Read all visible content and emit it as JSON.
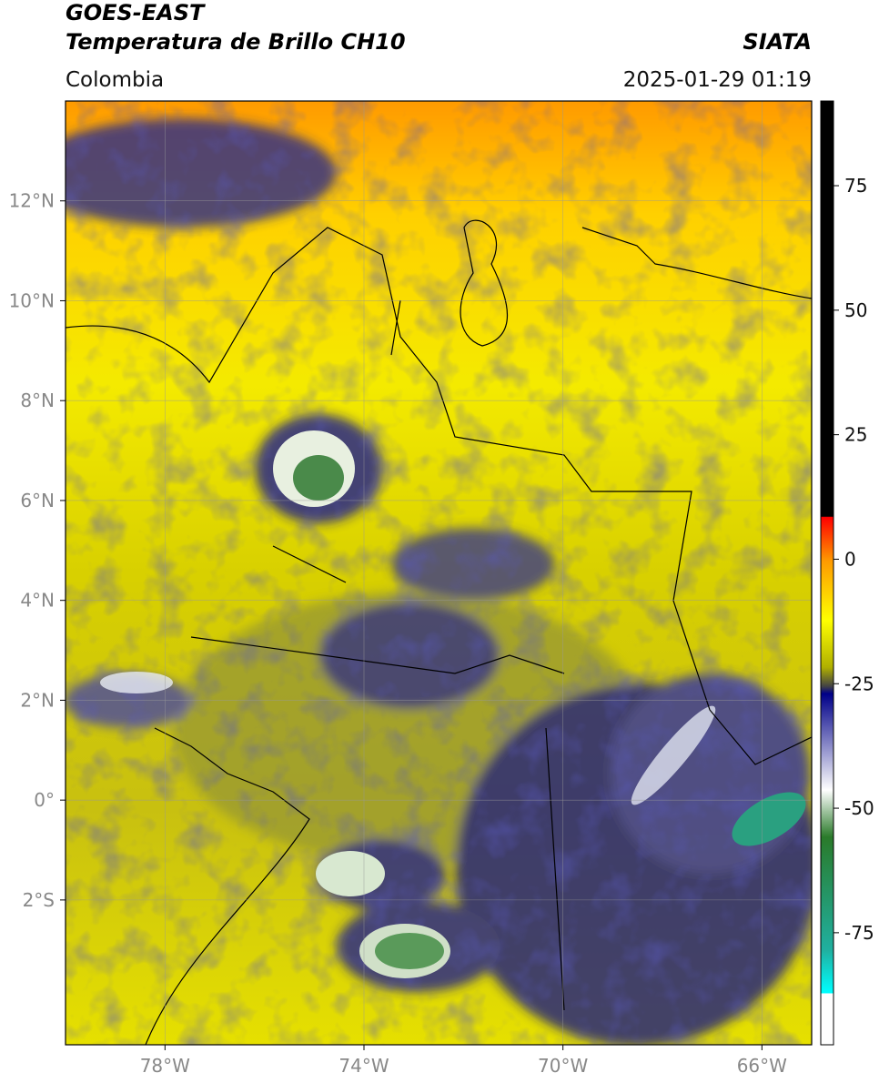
{
  "header": {
    "title": "GOES-EAST",
    "subtitle": "Temperatura de Brillo CH10",
    "source": "SIATA",
    "region": "Colombia",
    "datetime": "2025-01-29 01:19"
  },
  "map": {
    "xlim": [
      -80,
      -65
    ],
    "ylim": [
      -4.9,
      14
    ],
    "xticks": [
      {
        "value": -78,
        "label": "78°W"
      },
      {
        "value": -74,
        "label": "74°W"
      },
      {
        "value": -70,
        "label": "70°W"
      },
      {
        "value": -66,
        "label": "66°W"
      }
    ],
    "yticks": [
      {
        "value": 12,
        "label": "12°N"
      },
      {
        "value": 10,
        "label": "10°N"
      },
      {
        "value": 8,
        "label": "8°N"
      },
      {
        "value": 6,
        "label": "6°N"
      },
      {
        "value": 4,
        "label": "4°N"
      },
      {
        "value": 2,
        "label": "2°N"
      },
      {
        "value": 0,
        "label": "0°"
      },
      {
        "value": -2,
        "label": "2°S"
      }
    ]
  },
  "colorbar": {
    "lim": [
      -97.5,
      92
    ],
    "ticks": [
      75,
      50,
      25,
      0,
      -25,
      -50,
      -75
    ]
  }
}
